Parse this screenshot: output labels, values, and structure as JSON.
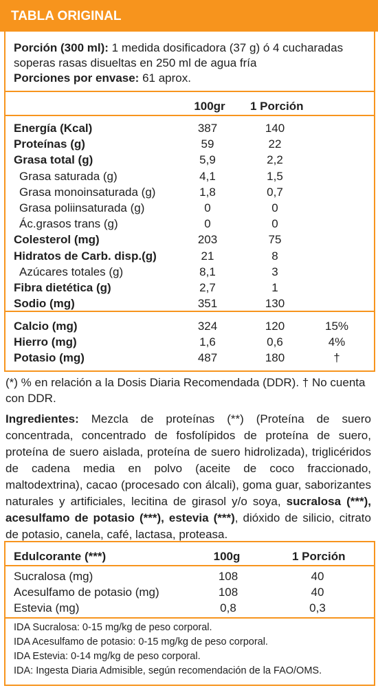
{
  "header": {
    "title": "TABLA ORIGINAL"
  },
  "serving": {
    "label": "Porción (300 ml):",
    "text_line1": " 1 medida dosificadora (37 g) ó 4 cucharadas",
    "text_line2": "soperas rasas disueltas en 250 ml de agua fría",
    "per_container_label": "Porciones por envase:",
    "per_container_value": " 61 aprox."
  },
  "columns": {
    "per100": "100gr",
    "per_serving": "1 Porción"
  },
  "nutrients": [
    {
      "name": "Energía (Kcal)",
      "bold": true,
      "per100": "387",
      "per_serving": "140"
    },
    {
      "name": "Proteínas (g)",
      "bold": true,
      "per100": "59",
      "per_serving": "22"
    },
    {
      "name": "Grasa total (g)",
      "bold": true,
      "per100": "5,9",
      "per_serving": "2,2"
    },
    {
      "name": "Grasa saturada (g)",
      "bold": false,
      "per100": "4,1",
      "per_serving": "1,5"
    },
    {
      "name": "Grasa monoinsaturada (g)",
      "bold": false,
      "per100": "1,8",
      "per_serving": "0,7"
    },
    {
      "name": "Grasa poliinsaturada (g)",
      "bold": false,
      "per100": "0",
      "per_serving": "0"
    },
    {
      "name": "Ác.grasos trans (g)",
      "bold": false,
      "per100": "0",
      "per_serving": "0"
    },
    {
      "name": "Colesterol (mg)",
      "bold": true,
      "per100": "203",
      "per_serving": "75"
    },
    {
      "name": "Hidratos de Carb. disp.(g)",
      "bold": true,
      "per100": "21",
      "per_serving": "8"
    },
    {
      "name": "Azúcares totales (g)",
      "bold": false,
      "per100": "8,1",
      "per_serving": "3"
    },
    {
      "name": "Fibra dietética (g)",
      "bold": true,
      "per100": "2,7",
      "per_serving": "1"
    },
    {
      "name": "Sodio (mg)",
      "bold": true,
      "per100": "351",
      "per_serving": "130"
    }
  ],
  "minerals": [
    {
      "name": "Calcio (mg)",
      "per100": "324",
      "per_serving": "120",
      "ddr": "15%"
    },
    {
      "name": "Hierro (mg)",
      "per100": "1,6",
      "per_serving": "0,6",
      "ddr": "4%"
    },
    {
      "name": "Potasio (mg)",
      "per100": "487",
      "per_serving": "180",
      "ddr": "†"
    }
  ],
  "footnote_line1": "(*) % en relación a la Dosis Diaria Recomendada (DDR). † No cuenta",
  "footnote_line2": "con DDR.",
  "ingredients": {
    "label": "Ingredientes:",
    "part1": " Mezcla de proteínas (**) (Proteína de suero concentrada, concentrado de fosfolípidos de proteína de suero, proteína de suero aislada, proteína de suero hidrolizada), triglicéridos de cadena media en polvo (aceite de coco fraccionado, maltodextrina), cacao (procesado con álcali), goma guar, saborizantes naturales y artificiales, lecitina de girasol y/o soya, ",
    "bold_part": "sucralosa (***), acesulfamo de potasio (***), estevia (***)",
    "part2": ", dióxido de silicio, citrato de potasio, canela, café, lactasa, proteasa."
  },
  "sweeteners": {
    "header": {
      "name": "Edulcorante (***)",
      "per100": "100g",
      "per_serving": "1 Porción"
    },
    "rows": [
      {
        "name": "Sucralosa (mg)",
        "per100": "108",
        "per_serving": "40"
      },
      {
        "name": "Acesulfamo de potasio (mg)",
        "per100": "108",
        "per_serving": "40"
      },
      {
        "name": "Estevia (mg)",
        "per100": "0,8",
        "per_serving": "0,3"
      }
    ],
    "notes": [
      "IDA Sucralosa: 0-15 mg/kg de peso corporal.",
      "IDA Acesulfamo de potasio: 0-15 mg/kg de peso corporal.",
      "IDA Estevia: 0-14 mg/kg de peso corporal.",
      "IDA: Ingesta Diaria Admisible, según recomendación de la FAO/OMS."
    ]
  },
  "colors": {
    "accent": "#f7941d",
    "text": "#1f1f1f"
  }
}
